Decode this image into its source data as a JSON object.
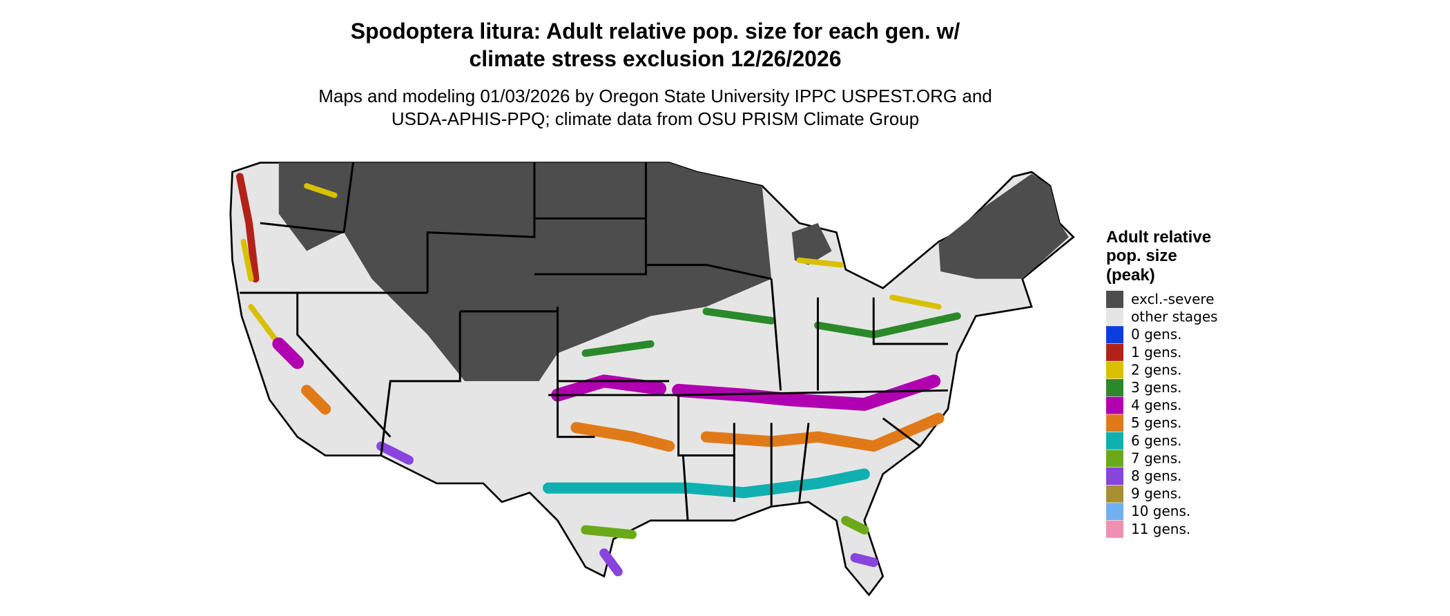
{
  "header": {
    "title": [
      "Spodoptera litura: Adult relative pop. size for each gen. w/",
      "climate stress exclusion 12/26/2026"
    ],
    "subtitle": [
      "Maps and modeling 01/03/2026 by Oregon State University IPPC USPEST.ORG and",
      "USDA-APHIS-PPQ; climate data from OSU PRISM Climate Group"
    ]
  },
  "legend": {
    "title": [
      "Adult relative",
      "pop. size",
      "(peak)"
    ],
    "items": [
      {
        "label": "excl.-severe",
        "color": "#4d4d4d"
      },
      {
        "label": "other stages",
        "color": "#e5e5e5"
      },
      {
        "label": "0 gens.",
        "color": "#0a3ee0"
      },
      {
        "label": "1 gens.",
        "color": "#b22218"
      },
      {
        "label": "2 gens.",
        "color": "#d8c000"
      },
      {
        "label": "3 gens.",
        "color": "#2a8a2a"
      },
      {
        "label": "4 gens.",
        "color": "#b000b0"
      },
      {
        "label": "5 gens.",
        "color": "#e07a18"
      },
      {
        "label": "6 gens.",
        "color": "#10b0b0"
      },
      {
        "label": "7 gens.",
        "color": "#6aaa18"
      },
      {
        "label": "8 gens.",
        "color": "#8844dd"
      },
      {
        "label": "9 gens.",
        "color": "#a89030"
      },
      {
        "label": "10 gens.",
        "color": "#70b0f0"
      },
      {
        "label": "11 gens.",
        "color": "#f090b0"
      }
    ]
  }
}
